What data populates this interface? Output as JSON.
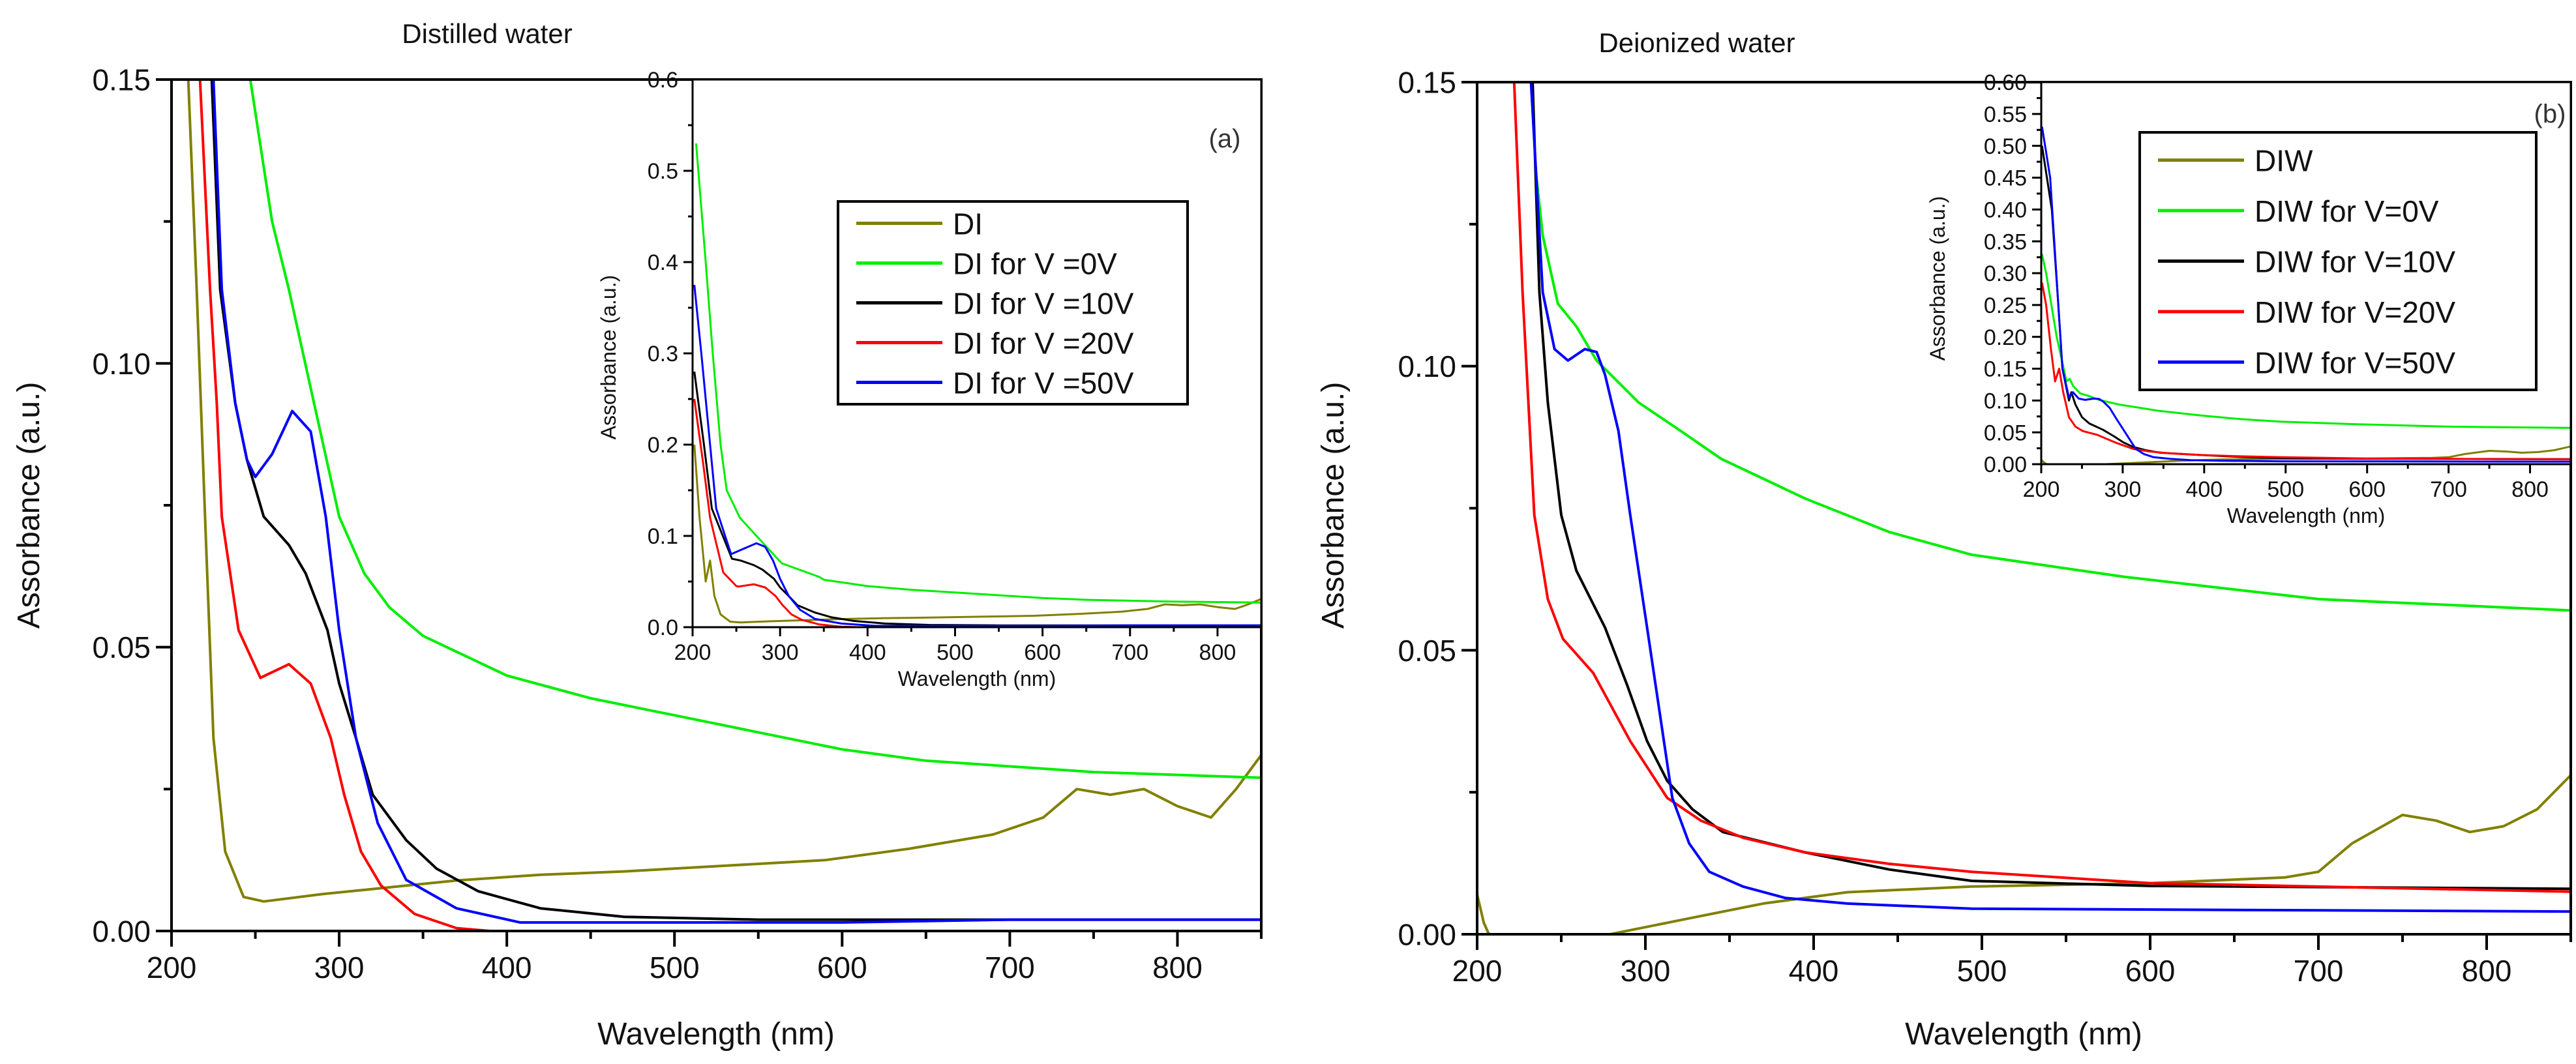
{
  "chart_data": [
    {
      "id": "a",
      "type": "line",
      "title": "Distilled water",
      "panel_label": "(a)",
      "xlabel": "Wavelength (nm)",
      "ylabel": "Assorbance (a.u.)",
      "xlim": [
        200,
        850
      ],
      "ylim": [
        0,
        0.15
      ],
      "xticks": [
        200,
        300,
        400,
        500,
        600,
        700,
        800
      ],
      "yticks": [
        "0.00",
        "0.05",
        "0.10",
        "0.15"
      ],
      "legend_position": "upper-right inside inset",
      "series": [
        {
          "name": "DI",
          "color": "#808000",
          "values": [
            [
              210,
              0.15
            ],
            [
              215,
              0.113
            ],
            [
              220,
              0.073
            ],
            [
              225,
              0.034
            ],
            [
              232,
              0.014
            ],
            [
              243,
              0.006
            ],
            [
              255,
              0.0052
            ],
            [
              290,
              0.0065
            ],
            [
              320,
              0.0074
            ],
            [
              370,
              0.0089
            ],
            [
              420,
              0.0099
            ],
            [
              470,
              0.0105
            ],
            [
              530,
              0.0115
            ],
            [
              590,
              0.0125
            ],
            [
              640,
              0.0145
            ],
            [
              690,
              0.017
            ],
            [
              720,
              0.02
            ],
            [
              740,
              0.025
            ],
            [
              760,
              0.024
            ],
            [
              780,
              0.025
            ],
            [
              800,
              0.022
            ],
            [
              820,
              0.02
            ],
            [
              835,
              0.025
            ],
            [
              850,
              0.031
            ]
          ]
        },
        {
          "name": "DI for V =0V",
          "color": "#00ee00",
          "values": [
            [
              247,
              0.15
            ],
            [
              260,
              0.125
            ],
            [
              270,
              0.113
            ],
            [
              285,
              0.093
            ],
            [
              300,
              0.073
            ],
            [
              315,
              0.063
            ],
            [
              330,
              0.057
            ],
            [
              350,
              0.052
            ],
            [
              400,
              0.045
            ],
            [
              450,
              0.041
            ],
            [
              500,
              0.038
            ],
            [
              550,
              0.035
            ],
            [
              600,
              0.032
            ],
            [
              650,
              0.03
            ],
            [
              700,
              0.029
            ],
            [
              750,
              0.028
            ],
            [
              850,
              0.027
            ]
          ]
        },
        {
          "name": "DI for V =10V",
          "color": "#000000",
          "values": [
            [
              224,
              0.15
            ],
            [
              229,
              0.113
            ],
            [
              238,
              0.093
            ],
            [
              245,
              0.083
            ],
            [
              255,
              0.073
            ],
            [
              270,
              0.068
            ],
            [
              280,
              0.063
            ],
            [
              293,
              0.053
            ],
            [
              300,
              0.0436
            ],
            [
              310,
              0.034
            ],
            [
              320,
              0.024
            ],
            [
              340,
              0.016
            ],
            [
              358,
              0.011
            ],
            [
              383,
              0.007
            ],
            [
              420,
              0.004
            ],
            [
              470,
              0.0025
            ],
            [
              550,
              0.002
            ],
            [
              850,
              0.002
            ]
          ]
        },
        {
          "name": "DI for V =20V",
          "color": "#ff0000",
          "values": [
            [
              217,
              0.15
            ],
            [
              223,
              0.113
            ],
            [
              227,
              0.093
            ],
            [
              230,
              0.073
            ],
            [
              240,
              0.053
            ],
            [
              253,
              0.0446
            ],
            [
              270,
              0.047
            ],
            [
              283,
              0.0436
            ],
            [
              295,
              0.034
            ],
            [
              303,
              0.024
            ],
            [
              313,
              0.014
            ],
            [
              325,
              0.008
            ],
            [
              345,
              0.003
            ],
            [
              370,
              0.0005
            ],
            [
              390,
              0
            ],
            [
              850,
              0
            ]
          ]
        },
        {
          "name": "DI for V =50V",
          "color": "#0000ff",
          "values": [
            [
              225,
              0.15
            ],
            [
              230,
              0.113
            ],
            [
              238,
              0.093
            ],
            [
              245,
              0.083
            ],
            [
              250,
              0.08
            ],
            [
              260,
              0.084
            ],
            [
              272,
              0.0916
            ],
            [
              283,
              0.088
            ],
            [
              292,
              0.073
            ],
            [
              300,
              0.053
            ],
            [
              310,
              0.034
            ],
            [
              323,
              0.019
            ],
            [
              340,
              0.009
            ],
            [
              370,
              0.004
            ],
            [
              408,
              0.0015
            ],
            [
              600,
              0.0015
            ],
            [
              700,
              0.002
            ],
            [
              850,
              0.002
            ]
          ]
        }
      ],
      "inset": {
        "xlabel": "Wavelength (nm)",
        "ylabel": "Assorbance (a.u.)",
        "xlim": [
          200,
          850
        ],
        "ylim": [
          0,
          0.6
        ],
        "xticks": [
          200,
          300,
          400,
          500,
          600,
          700,
          800
        ],
        "yticks": [
          "0.0",
          "0.1",
          "0.2",
          "0.3",
          "0.4",
          "0.5",
          "0.6"
        ],
        "series_heads": [
          [
            [
              202,
              0.2
            ],
            [
              208,
              0.12
            ],
            [
              215,
              0.05
            ]
          ],
          [
            [
              204,
              0.53
            ],
            [
              215,
              0.4
            ],
            [
              223,
              0.3
            ],
            [
              232,
              0.2
            ],
            [
              239,
              0.15
            ],
            [
              254,
              0.12
            ],
            [
              273,
              0.1
            ],
            [
              302,
              0.07
            ],
            [
              345,
              0.055
            ]
          ],
          [
            [
              202,
              0.28
            ],
            [
              213,
              0.2
            ],
            [
              222,
              0.13
            ],
            [
              245,
              0.075
            ]
          ],
          [
            [
              202,
              0.25
            ],
            [
              212,
              0.18
            ],
            [
              220,
              0.12
            ],
            [
              235,
              0.06
            ],
            [
              250,
              0.045
            ]
          ],
          [
            [
              202,
              0.375
            ],
            [
              210,
              0.3
            ],
            [
              220,
              0.2
            ],
            [
              227,
              0.13
            ],
            [
              244,
              0.08
            ],
            [
              273,
              0.092
            ]
          ]
        ]
      }
    },
    {
      "id": "b",
      "type": "line",
      "title": "Deionized water",
      "panel_label": "(b)",
      "xlabel": "Wavelength (nm)",
      "ylabel": "Assorbance (a.u.)",
      "xlim": [
        200,
        850
      ],
      "ylim": [
        0,
        0.15
      ],
      "xticks": [
        200,
        300,
        400,
        500,
        600,
        700,
        800
      ],
      "yticks": [
        "0.00",
        "0.05",
        "0.10",
        "0.15"
      ],
      "legend_position": "upper-right inside inset",
      "series": [
        {
          "name": "DIW",
          "color": "#808000",
          "values": [
            [
              200,
              0.007
            ],
            [
              204,
              0.002
            ],
            [
              207,
              0
            ],
            [
              279,
              0
            ],
            [
              321,
              0.0025
            ],
            [
              370,
              0.0054
            ],
            [
              420,
              0.0074
            ],
            [
              494,
              0.0084
            ],
            [
              600,
              0.009
            ],
            [
              680,
              0.01
            ],
            [
              700,
              0.011
            ],
            [
              720,
              0.016
            ],
            [
              750,
              0.021
            ],
            [
              770,
              0.02
            ],
            [
              790,
              0.018
            ],
            [
              810,
              0.019
            ],
            [
              830,
              0.022
            ],
            [
              850,
              0.028
            ]
          ]
        },
        {
          "name": "DIW for V=0V",
          "color": "#00ee00",
          "values": [
            [
              235,
              0.134
            ],
            [
              239,
              0.123
            ],
            [
              248,
              0.111
            ],
            [
              259,
              0.107
            ],
            [
              271,
              0.101
            ],
            [
              296,
              0.0936
            ],
            [
              321,
              0.0886
            ],
            [
              345,
              0.0837
            ],
            [
              395,
              0.0767
            ],
            [
              445,
              0.0708
            ],
            [
              494,
              0.0668
            ],
            [
              585,
              0.0629
            ],
            [
              700,
              0.059
            ],
            [
              850,
              0.057
            ]
          ]
        },
        {
          "name": "DIW for V=10V",
          "color": "#000000",
          "values": [
            [
              233,
              0.15
            ],
            [
              237,
              0.113
            ],
            [
              242,
              0.0936
            ],
            [
              250,
              0.0738
            ],
            [
              259,
              0.064
            ],
            [
              276,
              0.054
            ],
            [
              289,
              0.044
            ],
            [
              301,
              0.034
            ],
            [
              313,
              0.027
            ],
            [
              328,
              0.022
            ],
            [
              346,
              0.018
            ],
            [
              395,
              0.0144
            ],
            [
              445,
              0.0114
            ],
            [
              494,
              0.0094
            ],
            [
              600,
              0.0085
            ],
            [
              850,
              0.008
            ]
          ]
        },
        {
          "name": "DIW for V=20V",
          "color": "#ff0000",
          "values": [
            [
              222,
              0.15
            ],
            [
              227,
              0.113
            ],
            [
              234,
              0.0738
            ],
            [
              242,
              0.059
            ],
            [
              251,
              0.052
            ],
            [
              269,
              0.046
            ],
            [
              291,
              0.034
            ],
            [
              313,
              0.024
            ],
            [
              333,
              0.02
            ],
            [
              358,
              0.017
            ],
            [
              395,
              0.0144
            ],
            [
              445,
              0.0124
            ],
            [
              494,
              0.011
            ],
            [
              600,
              0.009
            ],
            [
              850,
              0.0075
            ]
          ]
        },
        {
          "name": "DIW for V=50V",
          "color": "#0000ff",
          "values": [
            [
              232,
              0.15
            ],
            [
              239,
              0.113
            ],
            [
              246,
              0.103
            ],
            [
              254,
              0.101
            ],
            [
              264,
              0.103
            ],
            [
              271,
              0.1025
            ],
            [
              276,
              0.0985
            ],
            [
              284,
              0.0886
            ],
            [
              291,
              0.0738
            ],
            [
              301,
              0.054
            ],
            [
              311,
              0.034
            ],
            [
              316,
              0.024
            ],
            [
              326,
              0.016
            ],
            [
              338,
              0.011
            ],
            [
              358,
              0.0084
            ],
            [
              383,
              0.0064
            ],
            [
              420,
              0.0054
            ],
            [
              494,
              0.0045
            ],
            [
              850,
              0.004
            ]
          ]
        }
      ],
      "inset": {
        "xlabel": "Wavelength (nm)",
        "ylabel": "Assorbance (a.u.)",
        "xlim": [
          200,
          850
        ],
        "ylim": [
          0,
          0.6
        ],
        "xticks": [
          200,
          300,
          400,
          500,
          600,
          700,
          800
        ],
        "yticks": [
          "0.00",
          "0.05",
          "0.10",
          "0.15",
          "0.20",
          "0.25",
          "0.30",
          "0.35",
          "0.40",
          "0.45",
          "0.50",
          "0.55",
          "0.60"
        ],
        "series_heads": [
          [
            [
              200,
              0.007
            ]
          ],
          [
            [
              201,
              0.33
            ],
            [
              206,
              0.3
            ],
            [
              219,
              0.2
            ],
            [
              231,
              0.13
            ]
          ],
          [
            [
              201,
              0.5
            ],
            [
              213,
              0.4
            ],
            [
              221,
              0.25
            ],
            [
              226,
              0.15
            ],
            [
              234,
              0.1
            ]
          ],
          [
            [
              201,
              0.285
            ],
            [
              206,
              0.25
            ],
            [
              212,
              0.18
            ],
            [
              217,
              0.13
            ]
          ],
          [
            [
              201,
              0.53
            ],
            [
              206,
              0.49
            ],
            [
              211,
              0.45
            ],
            [
              216,
              0.35
            ],
            [
              221,
              0.25
            ],
            [
              226,
              0.15
            ],
            [
              234,
              0.105
            ]
          ]
        ]
      }
    }
  ]
}
